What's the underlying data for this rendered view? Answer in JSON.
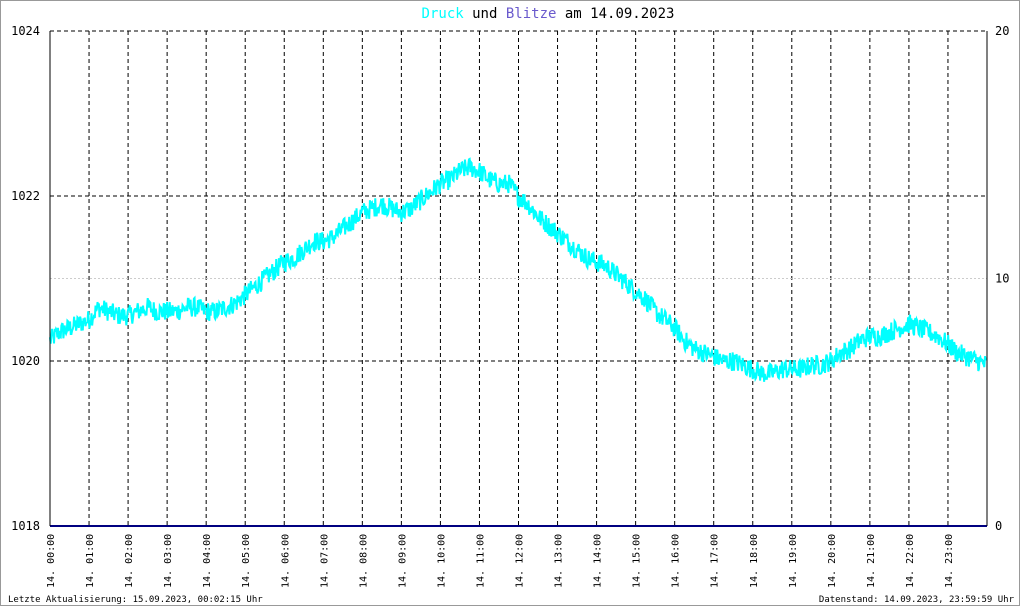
{
  "title": {
    "part1": "Druck",
    "part2": " und ",
    "part3": "Blitze",
    "part4": " am 14.09.2023"
  },
  "footer": {
    "left": "Letzte Aktualisierung: 15.09.2023, 00:02:15 Uhr",
    "right": "Datenstand: 14.09.2023, 23:59:59 Uhr"
  },
  "colors": {
    "druck": "#00ffff",
    "blitze": "#6a5acd",
    "title_text": "#000000",
    "blitze_line": "#000080",
    "grid": "#000000",
    "minor_grid": "#cccccc",
    "border": "#999999",
    "background": "#ffffff"
  },
  "chart_data": {
    "type": "line",
    "x_unit": "hour of day",
    "x_range": [
      0,
      24
    ],
    "x_tick_labels": [
      "14. 00:00",
      "14. 01:00",
      "14. 02:00",
      "14. 03:00",
      "14. 04:00",
      "14. 05:00",
      "14. 06:00",
      "14. 07:00",
      "14. 08:00",
      "14. 09:00",
      "14. 10:00",
      "14. 11:00",
      "14. 12:00",
      "14. 13:00",
      "14. 14:00",
      "14. 15:00",
      "14. 16:00",
      "14. 17:00",
      "14. 18:00",
      "14. 19:00",
      "14. 20:00",
      "14. 21:00",
      "14. 22:00",
      "14. 23:00"
    ],
    "y_left": {
      "min": 1018,
      "max": 1024,
      "ticks": [
        1018,
        1020,
        1022,
        1024
      ]
    },
    "y_right": {
      "min": 0,
      "max": 20,
      "ticks": [
        0,
        10,
        20
      ]
    },
    "grid": true,
    "series": [
      {
        "name": "Druck",
        "axis": "left",
        "noise_band": 0.12,
        "x": [
          0,
          0.25,
          0.5,
          0.75,
          1,
          1.25,
          1.5,
          1.75,
          2,
          2.25,
          2.5,
          2.75,
          3,
          3.25,
          3.5,
          3.75,
          4,
          4.25,
          4.5,
          4.75,
          5,
          5.25,
          5.5,
          5.75,
          6,
          6.25,
          6.5,
          6.75,
          7,
          7.25,
          7.5,
          7.75,
          8,
          8.25,
          8.5,
          8.75,
          9,
          9.25,
          9.5,
          9.75,
          10,
          10.25,
          10.5,
          10.75,
          11,
          11.25,
          11.5,
          11.75,
          12,
          12.25,
          12.5,
          12.75,
          13,
          13.25,
          13.5,
          13.75,
          14,
          14.25,
          14.5,
          14.75,
          15,
          15.25,
          15.5,
          15.75,
          16,
          16.25,
          16.5,
          16.75,
          17,
          17.25,
          17.5,
          17.75,
          18,
          18.25,
          18.5,
          18.75,
          19,
          19.25,
          19.5,
          19.75,
          20,
          20.25,
          20.5,
          20.75,
          21,
          21.25,
          21.5,
          21.75,
          22,
          22.25,
          22.5,
          22.75,
          23,
          23.25,
          23.5,
          23.75,
          24
        ],
        "values": [
          1020.25,
          1020.35,
          1020.4,
          1020.45,
          1020.5,
          1020.65,
          1020.6,
          1020.55,
          1020.55,
          1020.6,
          1020.65,
          1020.6,
          1020.6,
          1020.6,
          1020.65,
          1020.65,
          1020.6,
          1020.6,
          1020.65,
          1020.7,
          1020.8,
          1020.9,
          1021.0,
          1021.1,
          1021.2,
          1021.25,
          1021.35,
          1021.45,
          1021.45,
          1021.5,
          1021.6,
          1021.7,
          1021.8,
          1021.85,
          1021.9,
          1021.85,
          1021.8,
          1021.85,
          1021.95,
          1022.05,
          1022.15,
          1022.2,
          1022.3,
          1022.35,
          1022.3,
          1022.2,
          1022.15,
          1022.15,
          1022.0,
          1021.9,
          1021.75,
          1021.65,
          1021.55,
          1021.45,
          1021.35,
          1021.25,
          1021.2,
          1021.15,
          1021.05,
          1020.95,
          1020.85,
          1020.75,
          1020.6,
          1020.5,
          1020.4,
          1020.25,
          1020.15,
          1020.1,
          1020.05,
          1020.0,
          1020.0,
          1019.95,
          1019.9,
          1019.85,
          1019.85,
          1019.9,
          1019.9,
          1019.9,
          1019.95,
          1019.95,
          1020.0,
          1020.1,
          1020.15,
          1020.25,
          1020.3,
          1020.3,
          1020.35,
          1020.4,
          1020.45,
          1020.4,
          1020.35,
          1020.3,
          1020.2,
          1020.1,
          1020.05,
          1020.0,
          1019.95
        ]
      },
      {
        "name": "Blitze",
        "axis": "right",
        "x": [
          0,
          24
        ],
        "values": [
          0,
          0
        ]
      }
    ]
  }
}
